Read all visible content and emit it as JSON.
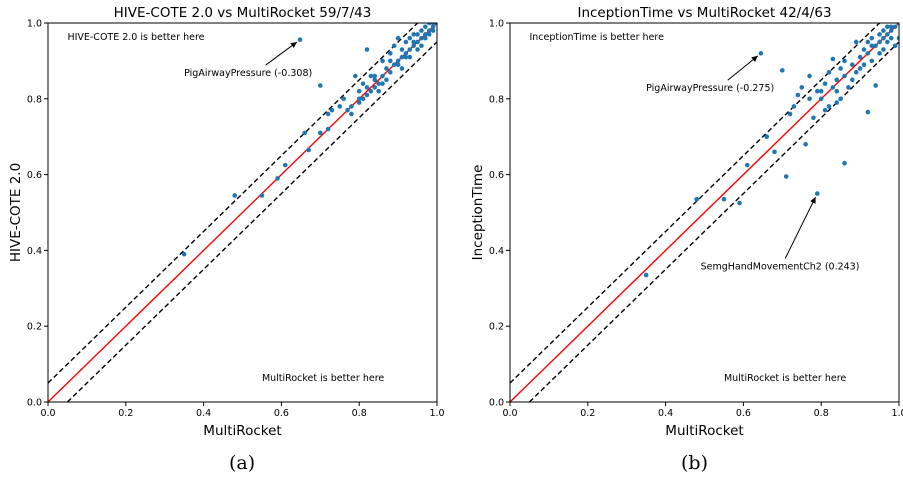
{
  "captions": [
    "(a)",
    "(b)"
  ],
  "colors": {
    "points": "#1f77b4",
    "diagonal": "#ff0000",
    "bands": "#000000"
  },
  "chart_data": [
    {
      "type": "scatter",
      "title": "HIVE-COTE 2.0 vs MultiRocket 59/7/43",
      "xlabel": "MultiRocket",
      "ylabel": "HIVE-COTE 2.0",
      "xlim": [
        0,
        1
      ],
      "ylim": [
        0,
        1
      ],
      "xticks": [
        "0.0",
        "0.2",
        "0.4",
        "0.6",
        "0.8",
        "1.0"
      ],
      "yticks": [
        "0.0",
        "0.2",
        "0.4",
        "0.6",
        "0.8",
        "1.0"
      ],
      "diagonal": true,
      "band_offset": 0.05,
      "region_labels": {
        "upper": "HIVE-COTE 2.0 is better here",
        "lower": "MultiRocket is better here"
      },
      "annotations": [
        {
          "text": "PigAirwayPressure (-0.308)",
          "point": [
            0.648,
            0.956
          ],
          "text_at": [
            0.35,
            0.86
          ]
        }
      ],
      "points": [
        [
          0.35,
          0.39
        ],
        [
          0.48,
          0.545
        ],
        [
          0.55,
          0.545
        ],
        [
          0.59,
          0.59
        ],
        [
          0.61,
          0.625
        ],
        [
          0.648,
          0.956
        ],
        [
          0.67,
          0.665
        ],
        [
          0.66,
          0.71
        ],
        [
          0.7,
          0.71
        ],
        [
          0.72,
          0.72
        ],
        [
          0.7,
          0.835
        ],
        [
          0.72,
          0.76
        ],
        [
          0.73,
          0.77
        ],
        [
          0.75,
          0.78
        ],
        [
          0.76,
          0.8
        ],
        [
          0.77,
          0.77
        ],
        [
          0.78,
          0.78
        ],
        [
          0.78,
          0.76
        ],
        [
          0.79,
          0.86
        ],
        [
          0.8,
          0.8
        ],
        [
          0.8,
          0.82
        ],
        [
          0.81,
          0.84
        ],
        [
          0.81,
          0.8
        ],
        [
          0.82,
          0.83
        ],
        [
          0.82,
          0.93
        ],
        [
          0.83,
          0.86
        ],
        [
          0.83,
          0.82
        ],
        [
          0.84,
          0.85
        ],
        [
          0.84,
          0.86
        ],
        [
          0.85,
          0.84
        ],
        [
          0.85,
          0.82
        ],
        [
          0.86,
          0.86
        ],
        [
          0.86,
          0.9
        ],
        [
          0.87,
          0.88
        ],
        [
          0.88,
          0.87
        ],
        [
          0.88,
          0.92
        ],
        [
          0.89,
          0.89
        ],
        [
          0.89,
          0.94
        ],
        [
          0.9,
          0.9
        ],
        [
          0.9,
          0.96
        ],
        [
          0.91,
          0.91
        ],
        [
          0.91,
          0.88
        ],
        [
          0.92,
          0.92
        ],
        [
          0.92,
          0.95
        ],
        [
          0.93,
          0.93
        ],
        [
          0.93,
          0.96
        ],
        [
          0.94,
          0.94
        ],
        [
          0.94,
          0.97
        ],
        [
          0.95,
          0.95
        ],
        [
          0.95,
          0.93
        ],
        [
          0.96,
          0.96
        ],
        [
          0.96,
          0.98
        ],
        [
          0.97,
          0.97
        ],
        [
          0.97,
          0.99
        ],
        [
          0.98,
          0.98
        ],
        [
          0.98,
          0.97
        ],
        [
          0.99,
          0.99
        ],
        [
          0.99,
          1.0
        ],
        [
          1.0,
          1.0
        ],
        [
          0.97,
          0.96
        ],
        [
          0.96,
          0.94
        ],
        [
          0.94,
          0.95
        ],
        [
          0.92,
          0.91
        ],
        [
          0.9,
          0.89
        ],
        [
          0.88,
          0.9
        ],
        [
          0.86,
          0.84
        ],
        [
          0.84,
          0.83
        ],
        [
          0.82,
          0.81
        ],
        [
          0.8,
          0.79
        ],
        [
          0.87,
          0.85
        ],
        [
          0.93,
          0.91
        ],
        [
          0.95,
          0.97
        ],
        [
          0.99,
          0.98
        ],
        [
          0.98,
          1.0
        ],
        [
          0.91,
          0.93
        ]
      ]
    },
    {
      "type": "scatter",
      "title": "InceptionTime vs MultiRocket 42/4/63",
      "xlabel": "MultiRocket",
      "ylabel": "InceptionTime",
      "xlim": [
        0,
        1
      ],
      "ylim": [
        0,
        1
      ],
      "xticks": [
        "0.0",
        "0.2",
        "0.4",
        "0.6",
        "0.8",
        "1.0"
      ],
      "yticks": [
        "0.0",
        "0.2",
        "0.4",
        "0.6",
        "0.8",
        "1.0"
      ],
      "diagonal": true,
      "band_offset": 0.05,
      "region_labels": {
        "upper": "InceptionTime is better here",
        "lower": "MultiRocket is better here"
      },
      "annotations": [
        {
          "text": "PigAirwayPressure (-0.275)",
          "point": [
            0.645,
            0.92
          ],
          "text_at": [
            0.35,
            0.82
          ]
        },
        {
          "text": "SemgHandMovementCh2 (0.243)",
          "point": [
            0.79,
            0.55
          ],
          "text_at": [
            0.49,
            0.35
          ]
        }
      ],
      "points": [
        [
          0.35,
          0.335
        ],
        [
          0.48,
          0.535
        ],
        [
          0.55,
          0.535
        ],
        [
          0.59,
          0.525
        ],
        [
          0.61,
          0.625
        ],
        [
          0.645,
          0.92
        ],
        [
          0.66,
          0.7
        ],
        [
          0.68,
          0.66
        ],
        [
          0.7,
          0.875
        ],
        [
          0.71,
          0.595
        ],
        [
          0.72,
          0.76
        ],
        [
          0.73,
          0.78
        ],
        [
          0.74,
          0.81
        ],
        [
          0.75,
          0.83
        ],
        [
          0.76,
          0.68
        ],
        [
          0.77,
          0.8
        ],
        [
          0.77,
          0.86
        ],
        [
          0.78,
          0.75
        ],
        [
          0.79,
          0.55
        ],
        [
          0.79,
          0.82
        ],
        [
          0.8,
          0.8
        ],
        [
          0.81,
          0.77
        ],
        [
          0.81,
          0.84
        ],
        [
          0.82,
          0.78
        ],
        [
          0.82,
          0.87
        ],
        [
          0.83,
          0.83
        ],
        [
          0.83,
          0.905
        ],
        [
          0.84,
          0.82
        ],
        [
          0.84,
          0.85
        ],
        [
          0.85,
          0.8
        ],
        [
          0.85,
          0.88
        ],
        [
          0.86,
          0.63
        ],
        [
          0.86,
          0.86
        ],
        [
          0.87,
          0.83
        ],
        [
          0.88,
          0.89
        ],
        [
          0.89,
          0.95
        ],
        [
          0.89,
          0.87
        ],
        [
          0.9,
          0.88
        ],
        [
          0.9,
          0.91
        ],
        [
          0.91,
          0.93
        ],
        [
          0.91,
          0.89
        ],
        [
          0.92,
          0.765
        ],
        [
          0.92,
          0.92
        ],
        [
          0.93,
          0.94
        ],
        [
          0.93,
          0.96
        ],
        [
          0.94,
          0.94
        ],
        [
          0.94,
          0.835
        ],
        [
          0.95,
          0.95
        ],
        [
          0.95,
          0.97
        ],
        [
          0.96,
          0.96
        ],
        [
          0.96,
          0.98
        ],
        [
          0.97,
          0.97
        ],
        [
          0.97,
          0.95
        ],
        [
          0.98,
          0.98
        ],
        [
          0.98,
          0.99
        ],
        [
          0.99,
          0.99
        ],
        [
          0.99,
          0.94
        ],
        [
          1.0,
          1.0
        ],
        [
          1.0,
          0.96
        ],
        [
          0.97,
          0.99
        ],
        [
          0.95,
          0.92
        ],
        [
          0.93,
          0.9
        ],
        [
          0.88,
          0.85
        ],
        [
          0.86,
          0.9
        ],
        [
          0.84,
          0.79
        ],
        [
          0.96,
          0.93
        ],
        [
          0.98,
          0.96
        ],
        [
          0.92,
          0.95
        ],
        [
          0.8,
          0.82
        ]
      ]
    }
  ]
}
